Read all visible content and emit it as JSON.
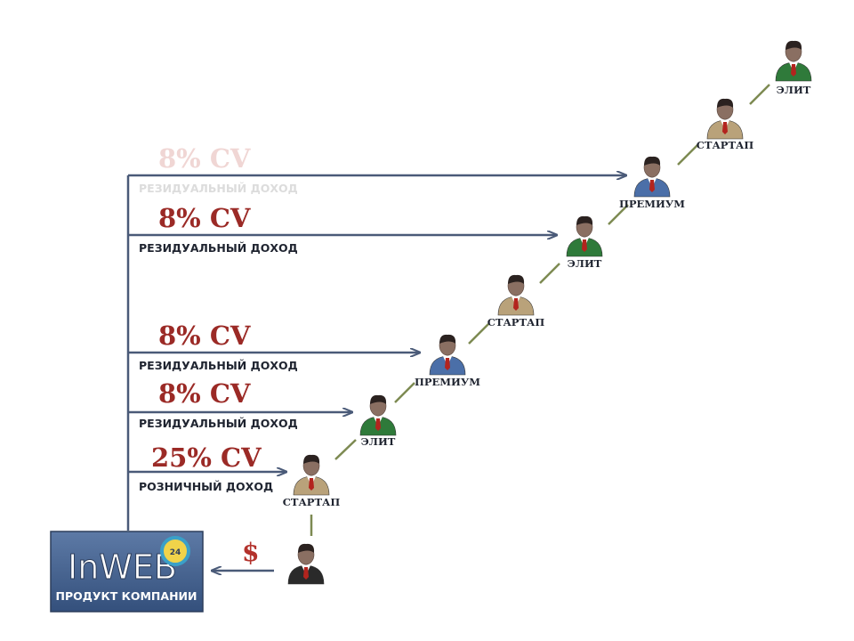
{
  "logo": {
    "brand": "InWEB",
    "badge": "24",
    "subtitle": "ПРОДУКТ КОМПАНИИ"
  },
  "customer": {
    "payment_symbol": "$"
  },
  "incomes": [
    {
      "percent": "8% CV",
      "label": "РЕЗИДУАЛЬНЫЙ ДОХОД",
      "faded": true
    },
    {
      "percent": "8% CV",
      "label": "РЕЗИДУАЛЬНЫЙ ДОХОД",
      "faded": false
    },
    {
      "percent": "8% CV",
      "label": "РЕЗИДУАЛЬНЫЙ ДОХОД",
      "faded": false
    },
    {
      "percent": "8% CV",
      "label": "РЕЗИДУАЛЬНЫЙ ДОХОД",
      "faded": false
    },
    {
      "percent": "25% CV",
      "label": "РОЗНИЧНЫЙ ДОХОД",
      "faded": false
    }
  ],
  "ranks": [
    {
      "label": "СТАРТАП",
      "suit": "tan"
    },
    {
      "label": "ЭЛИТ",
      "suit": "green"
    },
    {
      "label": "ПРЕМИУМ",
      "suit": "blue"
    },
    {
      "label": "СТАРТАП",
      "suit": "tan"
    },
    {
      "label": "ЭЛИТ",
      "suit": "green"
    },
    {
      "label": "ПРЕМИУМ",
      "suit": "blue"
    },
    {
      "label": "СТАРТАП",
      "suit": "tan"
    },
    {
      "label": "ЭЛИТ",
      "suit": "green"
    }
  ],
  "colors": {
    "arrow": "#4a5a78",
    "connector": "#7d8a52",
    "percent_text": "#9b2a26",
    "logo_bg": "#3f5b86",
    "suit_tan": "#b9a27a",
    "suit_green": "#2f7a3a",
    "suit_blue": "#4b6fa8",
    "customer_suit": "#2a2a2a"
  }
}
